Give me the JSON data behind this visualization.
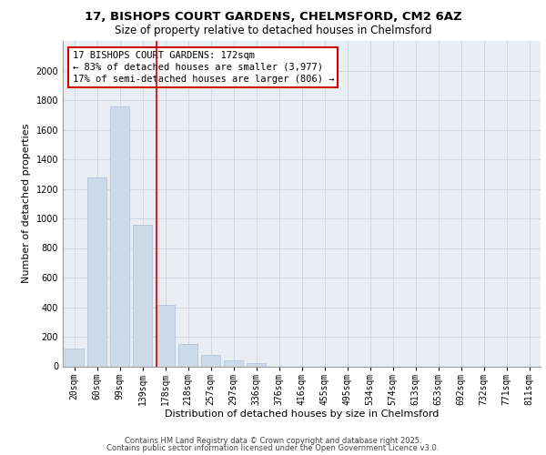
{
  "title1": "17, BISHOPS COURT GARDENS, CHELMSFORD, CM2 6AZ",
  "title2": "Size of property relative to detached houses in Chelmsford",
  "xlabel": "Distribution of detached houses by size in Chelmsford",
  "ylabel": "Number of detached properties",
  "categories": [
    "20sqm",
    "60sqm",
    "99sqm",
    "139sqm",
    "178sqm",
    "218sqm",
    "257sqm",
    "297sqm",
    "336sqm",
    "376sqm",
    "416sqm",
    "455sqm",
    "495sqm",
    "534sqm",
    "574sqm",
    "613sqm",
    "653sqm",
    "692sqm",
    "732sqm",
    "771sqm",
    "811sqm"
  ],
  "values": [
    120,
    1280,
    1760,
    960,
    415,
    150,
    80,
    40,
    20,
    0,
    0,
    0,
    0,
    0,
    0,
    0,
    0,
    0,
    0,
    0,
    0
  ],
  "property_label": "17 BISHOPS COURT GARDENS: 172sqm",
  "annotation_line1": "← 83% of detached houses are smaller (3,977)",
  "annotation_line2": "17% of semi-detached houses are larger (806) →",
  "bar_color": "#ccdaea",
  "bar_edge_color": "#aabfd4",
  "vline_color": "#cc0000",
  "vline_x": 3.62,
  "annotation_box_color": "#cc0000",
  "ylim": [
    0,
    2200
  ],
  "yticks": [
    0,
    200,
    400,
    600,
    800,
    1000,
    1200,
    1400,
    1600,
    1800,
    2000
  ],
  "grid_color": "#c8d4de",
  "background_color": "#e8eef4",
  "footer1": "Contains HM Land Registry data © Crown copyright and database right 2025.",
  "footer2": "Contains public sector information licensed under the Open Government Licence v3.0.",
  "title_fontsize": 9.5,
  "subtitle_fontsize": 8.5,
  "axis_label_fontsize": 8,
  "tick_fontsize": 7,
  "annotation_fontsize": 7.5,
  "footer_fontsize": 6
}
